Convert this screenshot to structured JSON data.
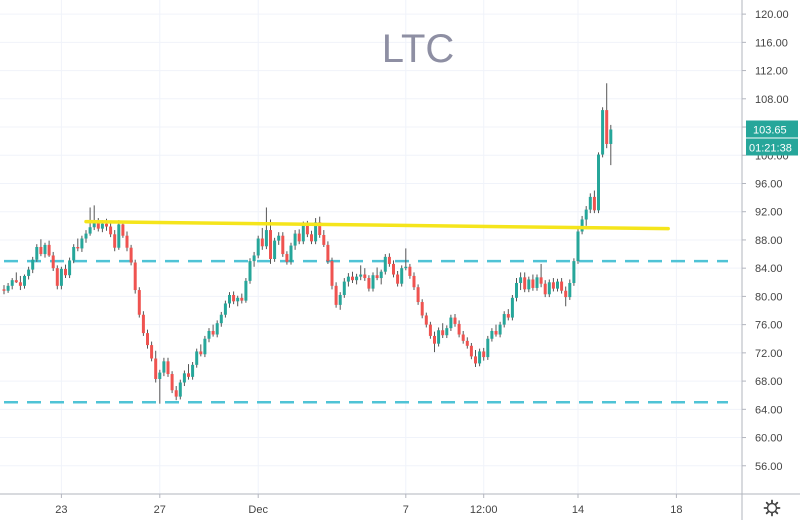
{
  "colors": {
    "up": "#26a69a",
    "down": "#ef5350",
    "wick": "#555555",
    "background": "#ffffff",
    "grid": "#f0f3fa",
    "axis_text": "#444444",
    "title": "#8e8fa3",
    "resistance_line": "#f5e51b",
    "level_line": "#4fc3d6",
    "last_price_label": "#26a69a"
  },
  "icons": {
    "settings": "gear-icon"
  },
  "chart_data": {
    "type": "candlestick",
    "title": "LTC",
    "subtitle": "",
    "xlabel": "",
    "ylabel": "",
    "grid": true,
    "legend": "none",
    "x_axis_scale": "hourly (4h candles), Nov 21 – Dec 18",
    "ylim": [
      52,
      122
    ],
    "y_ticks": [
      56,
      60,
      64,
      68,
      72,
      76,
      80,
      84,
      88,
      92,
      96,
      100,
      104,
      108,
      112,
      116,
      120
    ],
    "y_tick_labels": [
      "56.00",
      "60.00",
      "64.00",
      "68.00",
      "72.00",
      "76.00",
      "80.00",
      "84.00",
      "88.00",
      "92.00",
      "96.00",
      "100.00",
      "104.00",
      "108.00",
      "112.00",
      "116.00",
      "120.00"
    ],
    "x_ticks": [
      {
        "label": "23",
        "index": 14
      },
      {
        "label": "27",
        "index": 38
      },
      {
        "label": "Dec",
        "index": 62
      },
      {
        "label": "7",
        "index": 98
      },
      {
        "label": "12:00",
        "index": 117
      },
      {
        "label": "14",
        "index": 140
      },
      {
        "label": "18",
        "index": 164
      }
    ],
    "last_price": 103.65,
    "last_price_label": "103.65",
    "countdown_label": "01:21:38",
    "horizontal_levels": [
      {
        "price": 85.0,
        "style": "dashed",
        "color": "#4fc3d6"
      },
      {
        "price": 65.0,
        "style": "dashed",
        "color": "#4fc3d6"
      }
    ],
    "trend_line": {
      "from_index": 20,
      "from_price": 90.6,
      "to_index": 162,
      "to_price": 89.6,
      "color": "#f5e51b"
    },
    "candles": [
      [
        81.0,
        81.6,
        80.3,
        80.8
      ],
      [
        80.8,
        81.9,
        80.5,
        81.5
      ],
      [
        81.5,
        82.6,
        81.0,
        82.3
      ],
      [
        82.3,
        83.4,
        81.9,
        82.0
      ],
      [
        82.0,
        82.9,
        80.9,
        81.5
      ],
      [
        81.5,
        83.1,
        81.1,
        82.9
      ],
      [
        82.9,
        84.2,
        82.4,
        83.8
      ],
      [
        83.8,
        85.6,
        83.3,
        85.2
      ],
      [
        85.2,
        87.4,
        84.9,
        87.0
      ],
      [
        87.0,
        88.1,
        85.7,
        86.0
      ],
      [
        86.0,
        87.6,
        85.5,
        87.3
      ],
      [
        87.3,
        87.9,
        85.6,
        85.8
      ],
      [
        85.8,
        86.3,
        83.6,
        84.0
      ],
      [
        84.0,
        84.4,
        81.0,
        81.5
      ],
      [
        81.5,
        84.2,
        81.0,
        83.9
      ],
      [
        83.9,
        84.5,
        82.6,
        83.0
      ],
      [
        83.0,
        85.5,
        82.6,
        85.1
      ],
      [
        85.1,
        87.4,
        84.7,
        87.0
      ],
      [
        87.0,
        88.2,
        86.4,
        86.8
      ],
      [
        86.8,
        88.6,
        86.3,
        88.2
      ],
      [
        88.2,
        89.4,
        87.6,
        88.9
      ],
      [
        88.9,
        92.6,
        88.6,
        89.8
      ],
      [
        89.8,
        92.9,
        89.4,
        90.4
      ],
      [
        90.4,
        91.1,
        89.2,
        89.6
      ],
      [
        89.6,
        90.8,
        89.1,
        90.3
      ],
      [
        90.3,
        91.0,
        89.3,
        89.9
      ],
      [
        89.9,
        90.5,
        88.4,
        88.8
      ],
      [
        88.8,
        89.4,
        86.4,
        86.9
      ],
      [
        86.9,
        90.8,
        86.6,
        90.2
      ],
      [
        90.2,
        90.7,
        88.3,
        88.6
      ],
      [
        88.6,
        89.2,
        86.4,
        86.9
      ],
      [
        86.9,
        87.3,
        84.4,
        84.8
      ],
      [
        84.8,
        85.2,
        80.4,
        80.9
      ],
      [
        80.9,
        81.3,
        77.0,
        77.4
      ],
      [
        77.4,
        77.9,
        74.4,
        74.8
      ],
      [
        74.8,
        75.3,
        72.6,
        73.1
      ],
      [
        73.1,
        73.6,
        70.8,
        71.2
      ],
      [
        71.2,
        72.3,
        67.8,
        68.3
      ],
      [
        68.3,
        69.6,
        64.8,
        69.2
      ],
      [
        69.2,
        71.3,
        68.7,
        70.8
      ],
      [
        70.8,
        71.3,
        68.6,
        69.0
      ],
      [
        69.0,
        69.4,
        66.3,
        66.7
      ],
      [
        66.7,
        67.3,
        65.3,
        65.8
      ],
      [
        65.8,
        68.2,
        65.4,
        67.8
      ],
      [
        67.8,
        69.5,
        67.3,
        69.1
      ],
      [
        69.1,
        70.4,
        68.2,
        68.6
      ],
      [
        68.6,
        70.7,
        68.2,
        70.3
      ],
      [
        70.3,
        72.6,
        69.9,
        72.2
      ],
      [
        72.2,
        73.2,
        71.5,
        71.8
      ],
      [
        71.8,
        74.4,
        71.4,
        74.0
      ],
      [
        74.0,
        75.5,
        73.5,
        75.1
      ],
      [
        75.1,
        76.0,
        74.3,
        74.6
      ],
      [
        74.6,
        76.6,
        74.2,
        76.2
      ],
      [
        76.2,
        77.8,
        75.7,
        77.4
      ],
      [
        77.4,
        79.4,
        77.0,
        79.0
      ],
      [
        79.0,
        80.6,
        78.4,
        80.2
      ],
      [
        80.2,
        80.7,
        78.9,
        79.3
      ],
      [
        79.3,
        80.1,
        78.6,
        79.8
      ],
      [
        79.8,
        80.4,
        79.0,
        79.4
      ],
      [
        79.4,
        82.6,
        79.1,
        82.2
      ],
      [
        82.2,
        85.4,
        81.8,
        85.0
      ],
      [
        85.0,
        86.3,
        84.2,
        85.8
      ],
      [
        85.8,
        88.6,
        85.4,
        88.2
      ],
      [
        88.2,
        89.7,
        86.6,
        87.1
      ],
      [
        87.1,
        92.6,
        86.7,
        89.4
      ],
      [
        89.4,
        90.9,
        84.6,
        85.3
      ],
      [
        85.3,
        88.3,
        84.9,
        87.9
      ],
      [
        87.9,
        89.1,
        87.3,
        88.6
      ],
      [
        88.6,
        89.1,
        85.6,
        86.0
      ],
      [
        86.0,
        86.4,
        84.5,
        84.9
      ],
      [
        84.9,
        87.6,
        84.5,
        87.2
      ],
      [
        87.2,
        89.4,
        86.6,
        88.9
      ],
      [
        88.9,
        89.5,
        87.4,
        87.8
      ],
      [
        87.8,
        90.6,
        87.4,
        90.1
      ],
      [
        90.1,
        90.7,
        88.4,
        88.8
      ],
      [
        88.8,
        89.3,
        87.4,
        87.8
      ],
      [
        87.8,
        91.1,
        87.4,
        90.5
      ],
      [
        90.5,
        91.3,
        88.3,
        88.7
      ],
      [
        88.7,
        89.4,
        87.0,
        87.3
      ],
      [
        87.3,
        87.8,
        84.6,
        85.0
      ],
      [
        85.0,
        85.5,
        81.0,
        81.5
      ],
      [
        81.5,
        82.0,
        78.4,
        78.8
      ],
      [
        78.8,
        80.6,
        78.1,
        80.2
      ],
      [
        80.2,
        82.6,
        79.8,
        82.1
      ],
      [
        82.1,
        83.3,
        81.4,
        82.8
      ],
      [
        82.8,
        83.5,
        81.9,
        82.3
      ],
      [
        82.3,
        83.2,
        81.7,
        82.8
      ],
      [
        82.8,
        84.4,
        82.3,
        83.1
      ],
      [
        83.1,
        84.0,
        82.2,
        82.6
      ],
      [
        82.6,
        83.0,
        80.7,
        81.1
      ],
      [
        81.1,
        83.4,
        80.7,
        83.0
      ],
      [
        83.0,
        84.1,
        82.3,
        82.6
      ],
      [
        82.6,
        83.8,
        81.7,
        83.5
      ],
      [
        83.5,
        86.0,
        83.1,
        85.6
      ],
      [
        85.6,
        86.1,
        84.2,
        84.6
      ],
      [
        84.6,
        85.1,
        82.7,
        83.1
      ],
      [
        83.1,
        83.6,
        81.4,
        81.8
      ],
      [
        81.8,
        84.4,
        81.4,
        84.0
      ],
      [
        84.0,
        86.8,
        83.7,
        84.2
      ],
      [
        84.2,
        84.6,
        82.5,
        82.9
      ],
      [
        82.9,
        83.4,
        80.9,
        81.3
      ],
      [
        81.3,
        81.7,
        78.8,
        79.2
      ],
      [
        79.2,
        79.6,
        76.9,
        77.3
      ],
      [
        77.3,
        77.7,
        75.6,
        76.0
      ],
      [
        76.0,
        76.4,
        74.0,
        74.4
      ],
      [
        74.4,
        75.0,
        72.1,
        73.3
      ],
      [
        73.3,
        75.6,
        72.9,
        75.2
      ],
      [
        75.2,
        76.2,
        74.1,
        74.5
      ],
      [
        74.5,
        75.9,
        74.1,
        75.5
      ],
      [
        75.5,
        77.4,
        75.1,
        77.0
      ],
      [
        77.0,
        77.5,
        75.7,
        76.1
      ],
      [
        76.1,
        76.6,
        74.2,
        74.6
      ],
      [
        74.6,
        75.1,
        73.3,
        73.7
      ],
      [
        73.7,
        74.2,
        72.6,
        73.0
      ],
      [
        73.0,
        73.4,
        71.1,
        71.5
      ],
      [
        71.5,
        72.4,
        70.0,
        70.5
      ],
      [
        70.5,
        72.6,
        70.1,
        72.2
      ],
      [
        72.2,
        72.7,
        70.9,
        71.4
      ],
      [
        71.4,
        74.4,
        71.0,
        74.0
      ],
      [
        74.0,
        75.5,
        73.6,
        75.1
      ],
      [
        75.1,
        76.0,
        74.3,
        74.6
      ],
      [
        74.6,
        76.4,
        74.2,
        76.0
      ],
      [
        76.0,
        77.9,
        75.6,
        77.5
      ],
      [
        77.5,
        78.2,
        76.6,
        77.0
      ],
      [
        77.0,
        80.2,
        76.6,
        79.8
      ],
      [
        79.8,
        82.6,
        79.3,
        81.9
      ],
      [
        81.9,
        83.4,
        80.9,
        82.7
      ],
      [
        82.7,
        83.4,
        80.6,
        81.0
      ],
      [
        81.0,
        82.8,
        80.6,
        82.4
      ],
      [
        82.4,
        83.1,
        80.8,
        81.2
      ],
      [
        81.2,
        83.1,
        80.8,
        82.7
      ],
      [
        82.7,
        84.6,
        81.3,
        81.8
      ],
      [
        81.8,
        82.3,
        79.9,
        80.3
      ],
      [
        80.3,
        82.4,
        79.9,
        82.0
      ],
      [
        82.0,
        82.6,
        80.7,
        81.1
      ],
      [
        81.1,
        82.5,
        80.7,
        82.1
      ],
      [
        82.1,
        82.6,
        80.4,
        80.8
      ],
      [
        80.8,
        81.4,
        78.6,
        79.9
      ],
      [
        79.9,
        82.4,
        79.5,
        81.9
      ],
      [
        81.9,
        85.4,
        81.5,
        85.0
      ],
      [
        85.0,
        89.6,
        84.6,
        89.2
      ],
      [
        89.2,
        91.4,
        88.8,
        90.9
      ],
      [
        90.9,
        92.8,
        90.0,
        92.3
      ],
      [
        92.3,
        94.6,
        91.8,
        94.1
      ],
      [
        94.1,
        95.0,
        91.8,
        92.2
      ],
      [
        92.2,
        100.4,
        91.8,
        100.1
      ],
      [
        100.1,
        106.8,
        99.7,
        106.4
      ],
      [
        106.4,
        110.2,
        101.0,
        101.6
      ],
      [
        101.6,
        104.3,
        98.6,
        103.65
      ]
    ]
  }
}
